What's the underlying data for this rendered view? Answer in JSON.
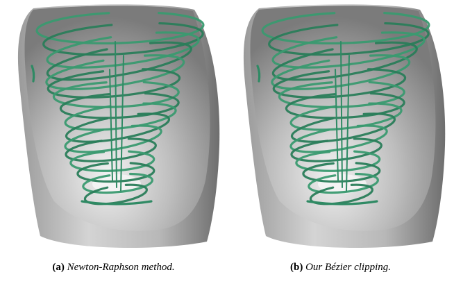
{
  "panels": [
    {
      "label": "(a)",
      "caption": "Newton-Raphson method."
    },
    {
      "label": "(b)",
      "caption": "Our Bézier clipping."
    }
  ]
}
